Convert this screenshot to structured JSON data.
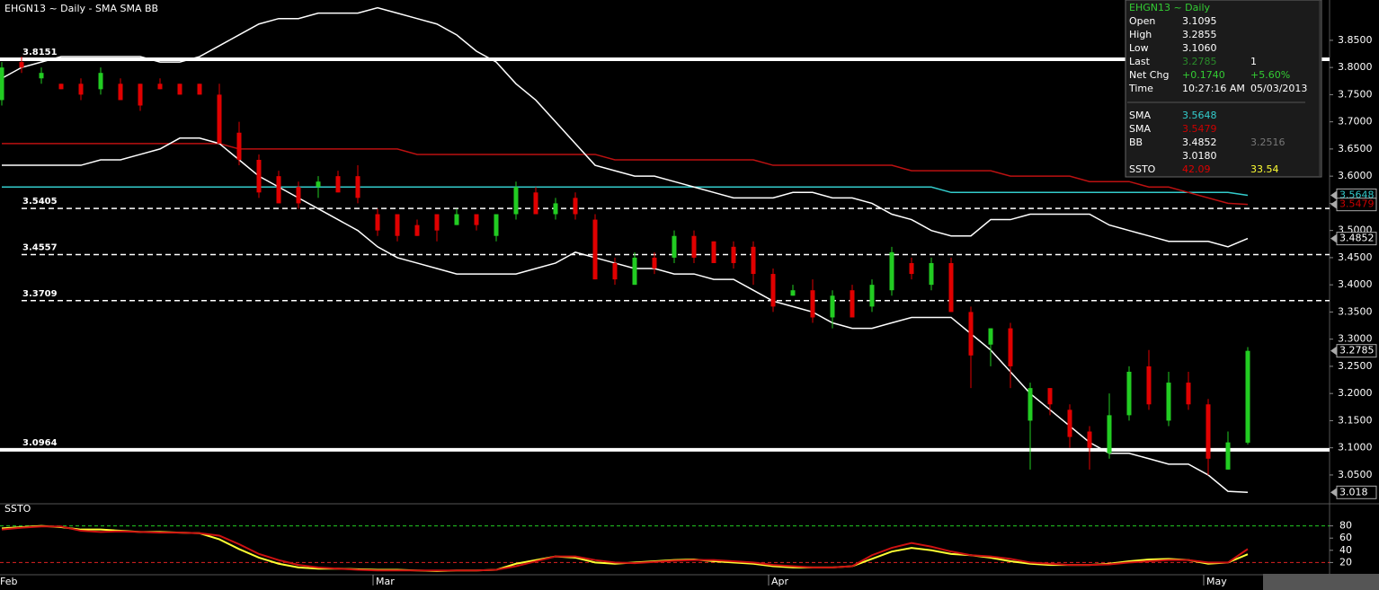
{
  "chart_data": [
    {
      "type": "candlestick",
      "title": "EHGN13 ~ Daily  -  SMA SMA BB",
      "categories": [
        "Feb",
        null,
        null,
        null,
        null,
        null,
        null,
        null,
        null,
        null,
        null,
        null,
        null,
        null,
        null,
        null,
        null,
        null,
        null,
        "Mar",
        null,
        null,
        null,
        null,
        null,
        null,
        null,
        null,
        null,
        null,
        null,
        null,
        null,
        null,
        null,
        null,
        null,
        null,
        null,
        "Apr",
        null,
        null,
        null,
        null,
        null,
        null,
        null,
        null,
        null,
        null,
        null,
        null,
        null,
        null,
        null,
        null,
        null,
        null,
        null,
        null,
        null,
        "May",
        null,
        null
      ],
      "open": [
        3.74,
        3.81,
        3.78,
        3.77,
        3.77,
        3.76,
        3.77,
        3.77,
        3.77,
        3.77,
        3.77,
        3.75,
        3.68,
        3.63,
        3.6,
        3.58,
        3.58,
        3.6,
        3.6,
        3.53,
        3.53,
        3.51,
        3.53,
        3.51,
        3.53,
        3.49,
        3.53,
        3.57,
        3.53,
        3.56,
        3.52,
        3.44,
        3.4,
        3.45,
        3.45,
        3.49,
        3.48,
        3.47,
        3.47,
        3.42,
        3.38,
        3.39,
        3.34,
        3.39,
        3.36,
        3.39,
        3.44,
        3.4,
        3.44,
        3.35,
        3.29,
        3.32,
        3.15,
        3.21,
        3.17,
        3.13,
        3.09,
        3.16,
        3.25,
        3.15,
        3.22,
        3.18,
        3.06,
        3.1095
      ],
      "high": [
        3.81,
        3.82,
        3.8,
        3.77,
        3.78,
        3.8,
        3.78,
        3.77,
        3.78,
        3.77,
        3.77,
        3.77,
        3.7,
        3.64,
        3.61,
        3.59,
        3.6,
        3.61,
        3.62,
        3.54,
        3.53,
        3.52,
        3.53,
        3.54,
        3.53,
        3.53,
        3.59,
        3.58,
        3.56,
        3.57,
        3.53,
        3.45,
        3.46,
        3.46,
        3.5,
        3.5,
        3.48,
        3.48,
        3.48,
        3.43,
        3.4,
        3.41,
        3.39,
        3.4,
        3.41,
        3.47,
        3.45,
        3.45,
        3.45,
        3.36,
        3.32,
        3.33,
        3.22,
        3.21,
        3.18,
        3.14,
        3.2,
        3.25,
        3.28,
        3.24,
        3.24,
        3.19,
        3.13,
        3.2855
      ],
      "low": [
        3.73,
        3.79,
        3.77,
        3.76,
        3.74,
        3.75,
        3.74,
        3.72,
        3.76,
        3.75,
        3.75,
        3.66,
        3.62,
        3.56,
        3.55,
        3.54,
        3.56,
        3.57,
        3.55,
        3.49,
        3.48,
        3.49,
        3.48,
        3.51,
        3.5,
        3.48,
        3.52,
        3.53,
        3.52,
        3.52,
        3.41,
        3.4,
        3.4,
        3.42,
        3.44,
        3.44,
        3.44,
        3.43,
        3.4,
        3.35,
        3.38,
        3.33,
        3.32,
        3.34,
        3.35,
        3.38,
        3.41,
        3.39,
        3.35,
        3.21,
        3.25,
        3.21,
        3.06,
        3.16,
        3.1,
        3.06,
        3.08,
        3.15,
        3.17,
        3.14,
        3.17,
        3.05,
        3.06,
        3.106
      ],
      "close": [
        3.8,
        3.8,
        3.79,
        3.76,
        3.75,
        3.79,
        3.74,
        3.73,
        3.76,
        3.75,
        3.75,
        3.66,
        3.63,
        3.57,
        3.55,
        3.55,
        3.59,
        3.57,
        3.56,
        3.5,
        3.49,
        3.49,
        3.5,
        3.53,
        3.51,
        3.53,
        3.58,
        3.53,
        3.55,
        3.53,
        3.41,
        3.41,
        3.45,
        3.43,
        3.49,
        3.45,
        3.44,
        3.44,
        3.42,
        3.36,
        3.39,
        3.34,
        3.38,
        3.34,
        3.4,
        3.46,
        3.42,
        3.44,
        3.35,
        3.27,
        3.32,
        3.25,
        3.21,
        3.18,
        3.12,
        3.1,
        3.16,
        3.24,
        3.18,
        3.22,
        3.18,
        3.08,
        3.11,
        3.2785
      ],
      "up_color": "#22cc22",
      "down_color": "#e00000",
      "series": [
        {
          "name": "SMA",
          "color": "#33cccc",
          "values": [
            3.58,
            3.58,
            3.58,
            3.58,
            3.58,
            3.58,
            3.58,
            3.58,
            3.58,
            3.58,
            3.58,
            3.58,
            3.58,
            3.58,
            3.58,
            3.58,
            3.58,
            3.58,
            3.58,
            3.58,
            3.58,
            3.58,
            3.58,
            3.58,
            3.58,
            3.58,
            3.58,
            3.58,
            3.58,
            3.58,
            3.58,
            3.58,
            3.58,
            3.58,
            3.58,
            3.58,
            3.58,
            3.58,
            3.58,
            3.58,
            3.58,
            3.58,
            3.58,
            3.58,
            3.58,
            3.58,
            3.58,
            3.58,
            3.57,
            3.57,
            3.57,
            3.57,
            3.57,
            3.57,
            3.57,
            3.57,
            3.57,
            3.57,
            3.57,
            3.57,
            3.57,
            3.57,
            3.57,
            3.5648
          ]
        },
        {
          "name": "SMA",
          "color": "#bb1111",
          "values": [
            3.66,
            3.66,
            3.66,
            3.66,
            3.66,
            3.66,
            3.66,
            3.66,
            3.66,
            3.66,
            3.66,
            3.66,
            3.65,
            3.65,
            3.65,
            3.65,
            3.65,
            3.65,
            3.65,
            3.65,
            3.65,
            3.64,
            3.64,
            3.64,
            3.64,
            3.64,
            3.64,
            3.64,
            3.64,
            3.64,
            3.64,
            3.63,
            3.63,
            3.63,
            3.63,
            3.63,
            3.63,
            3.63,
            3.63,
            3.62,
            3.62,
            3.62,
            3.62,
            3.62,
            3.62,
            3.62,
            3.61,
            3.61,
            3.61,
            3.61,
            3.61,
            3.6,
            3.6,
            3.6,
            3.6,
            3.59,
            3.59,
            3.59,
            3.58,
            3.58,
            3.57,
            3.56,
            3.55,
            3.5479
          ]
        },
        {
          "name": "BB",
          "color": "#ffffff",
          "values": [
            3.78,
            3.8,
            3.81,
            3.82,
            3.82,
            3.82,
            3.82,
            3.82,
            3.81,
            3.81,
            3.82,
            3.84,
            3.86,
            3.88,
            3.89,
            3.89,
            3.9,
            3.9,
            3.9,
            3.91,
            3.9,
            3.89,
            3.88,
            3.86,
            3.83,
            3.81,
            3.77,
            3.74,
            3.7,
            3.66,
            3.62,
            3.61,
            3.6,
            3.6,
            3.59,
            3.58,
            3.57,
            3.56,
            3.56,
            3.56,
            3.57,
            3.57,
            3.56,
            3.56,
            3.55,
            3.53,
            3.52,
            3.5,
            3.49,
            3.49,
            3.52,
            3.52,
            3.53,
            3.53,
            3.53,
            3.53,
            3.51,
            3.5,
            3.49,
            3.48,
            3.48,
            3.48,
            3.47,
            3.4852
          ]
        },
        {
          "name": "BB",
          "color": "#ffffff",
          "values": [
            3.62,
            3.62,
            3.62,
            3.62,
            3.62,
            3.63,
            3.63,
            3.64,
            3.65,
            3.67,
            3.67,
            3.66,
            3.63,
            3.6,
            3.58,
            3.56,
            3.54,
            3.52,
            3.5,
            3.47,
            3.45,
            3.44,
            3.43,
            3.42,
            3.42,
            3.42,
            3.42,
            3.43,
            3.44,
            3.46,
            3.45,
            3.44,
            3.43,
            3.43,
            3.42,
            3.42,
            3.41,
            3.41,
            3.39,
            3.37,
            3.36,
            3.35,
            3.33,
            3.32,
            3.32,
            3.33,
            3.34,
            3.34,
            3.34,
            3.31,
            3.28,
            3.24,
            3.2,
            3.17,
            3.14,
            3.11,
            3.09,
            3.09,
            3.08,
            3.07,
            3.07,
            3.05,
            3.02,
            3.018
          ]
        }
      ],
      "levels": [
        {
          "value": 3.8151,
          "style": "solid"
        },
        {
          "value": 3.5405,
          "style": "dashed"
        },
        {
          "value": 3.4557,
          "style": "dashed"
        },
        {
          "value": 3.3709,
          "style": "dashed"
        },
        {
          "value": 3.0964,
          "style": "solid"
        }
      ],
      "price_badges": [
        {
          "value": 3.5648,
          "color": "#33cccc"
        },
        {
          "value": 3.5479,
          "color": "#cc0000"
        },
        {
          "value": 3.4852,
          "color": "#ffffff"
        },
        {
          "value": 3.2785,
          "color": "#ffffff"
        },
        {
          "value": 3.018,
          "color": "#ffffff"
        }
      ],
      "ylim": [
        2.997,
        3.9242
      ],
      "yticks": [
        {
          "value": 3.85,
          "label": "3.8500"
        },
        {
          "value": 3.8,
          "label": "3.8000"
        },
        {
          "value": 3.75,
          "label": "3.7500"
        },
        {
          "value": 3.7,
          "label": "3.7000"
        },
        {
          "value": 3.65,
          "label": "3.6500"
        },
        {
          "value": 3.6,
          "label": "3.6000"
        },
        {
          "value": 3.55,
          "label": "3.5500"
        },
        {
          "value": 3.5,
          "label": "3.5000"
        },
        {
          "value": 3.45,
          "label": "3.4500"
        },
        {
          "value": 3.4,
          "label": "3.4000"
        },
        {
          "value": 3.35,
          "label": "3.3500"
        },
        {
          "value": 3.3,
          "label": "3.3000"
        },
        {
          "value": 3.25,
          "label": "3.2500"
        },
        {
          "value": 3.2,
          "label": "3.2000"
        },
        {
          "value": 3.15,
          "label": "3.1500"
        },
        {
          "value": 3.1,
          "label": "3.1000"
        },
        {
          "value": 3.05,
          "label": "3.0500"
        }
      ]
    },
    {
      "type": "line",
      "title": "SSTO",
      "series": [
        {
          "color": "#ffff33",
          "values": [
            76,
            78,
            80,
            78,
            74,
            74,
            72,
            70,
            70,
            69,
            68,
            58,
            42,
            28,
            18,
            12,
            10,
            10,
            9,
            8,
            8,
            7,
            6,
            7,
            7,
            8,
            18,
            24,
            30,
            28,
            20,
            18,
            20,
            22,
            24,
            25,
            22,
            20,
            18,
            14,
            12,
            12,
            12,
            14,
            26,
            38,
            44,
            40,
            34,
            32,
            28,
            22,
            18,
            16,
            16,
            16,
            18,
            22,
            25,
            26,
            24,
            18,
            20,
            33.54
          ]
        },
        {
          "color": "#cc1111",
          "values": [
            74,
            77,
            79,
            79,
            72,
            70,
            71,
            70,
            69,
            69,
            68,
            64,
            50,
            34,
            24,
            16,
            12,
            10,
            8,
            7,
            7,
            7,
            7,
            7,
            7,
            8,
            14,
            22,
            30,
            30,
            24,
            20,
            19,
            21,
            23,
            24,
            24,
            22,
            20,
            16,
            14,
            12,
            12,
            14,
            32,
            44,
            52,
            46,
            38,
            32,
            30,
            26,
            20,
            18,
            16,
            16,
            17,
            20,
            22,
            24,
            24,
            20,
            20,
            42.09
          ]
        }
      ],
      "levels": [
        {
          "value": 80,
          "color": "#22cc22"
        },
        {
          "value": 20,
          "color": "#dd2222"
        }
      ],
      "ylim": [
        0,
        100
      ],
      "yticks": [
        20,
        40,
        60,
        80
      ]
    }
  ],
  "info_panel": {
    "title": "EHGN13 ~ Daily",
    "title_color": "#33cc33",
    "rows": [
      {
        "label": "Open",
        "cells": [
          {
            "text": "3.1095"
          }
        ]
      },
      {
        "label": "High",
        "cells": [
          {
            "text": "3.2855"
          }
        ]
      },
      {
        "label": "Low",
        "cells": [
          {
            "text": "3.1060"
          }
        ]
      },
      {
        "label": "Last",
        "cells": [
          {
            "text": "3.2785",
            "color": "#2a8a2a"
          },
          {
            "text": "1"
          }
        ]
      },
      {
        "label": "Net Chg",
        "cells": [
          {
            "text": "+0.1740",
            "color": "#33cc33"
          },
          {
            "text": "+5.60%",
            "color": "#33cc33"
          }
        ]
      },
      {
        "label": "Time",
        "cells": [
          {
            "text": "10:27:16 AM"
          },
          {
            "text": "05/03/2013"
          }
        ]
      },
      {
        "label": "SMA",
        "cells": [
          {
            "text": "3.5648",
            "color": "#33cccc"
          }
        ]
      },
      {
        "label": "SMA",
        "cells": [
          {
            "text": "3.5479",
            "color": "#cc0000"
          }
        ]
      },
      {
        "label": "BB",
        "cells": [
          {
            "text": "3.4852"
          },
          {
            "text": "3.2516",
            "color": "#777777"
          }
        ]
      },
      {
        "cells": [
          {
            "text": "3.0180"
          }
        ]
      },
      {
        "label": "SSTO",
        "cells": [
          {
            "text": "42.09",
            "color": "#dd0000"
          },
          {
            "text": "33.54",
            "color": "#ffff33"
          }
        ]
      }
    ]
  }
}
